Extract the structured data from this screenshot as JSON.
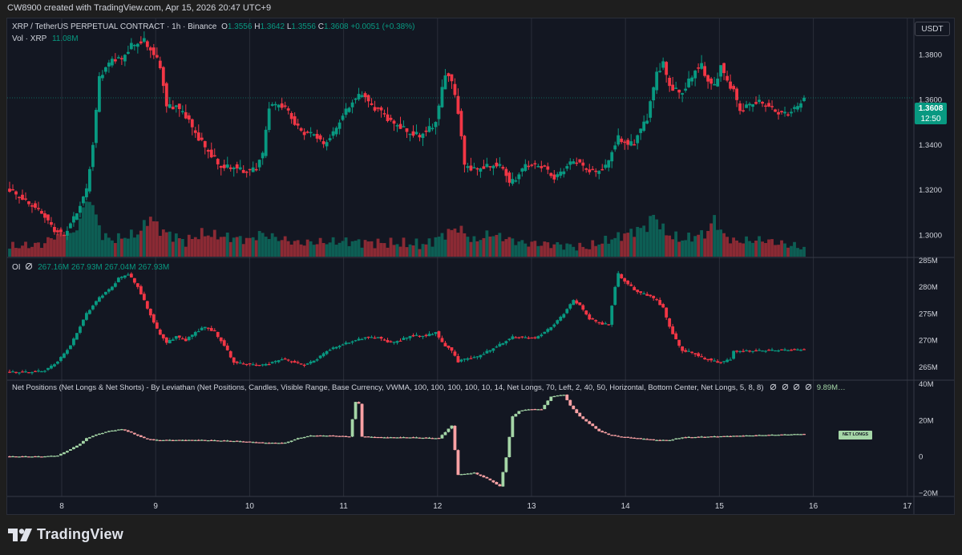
{
  "header": {
    "created": "CW8900 created with TradingView.com, Apr 15, 2026 20:47 UTC+9"
  },
  "main_legend": {
    "symbol": "XRP / TetherUS PERPETUAL CONTRACT · 1h · Binance",
    "o_label": "O",
    "o": "1.3556",
    "h_label": "H",
    "h": "1.3642",
    "l_label": "L",
    "l": "1.3556",
    "c_label": "C",
    "c": "1.3608",
    "change": "+0.0051 (+0.38%)",
    "vol_label": "Vol · XRP",
    "vol": "11.08M"
  },
  "oi_legend": {
    "label": "OI",
    "icon": "hidden-eye-icon",
    "values": [
      "267.16M",
      "267.93M",
      "267.04M",
      "267.93M"
    ]
  },
  "net_legend": {
    "text": "Net Positions (Net Longs & Net Shorts) - By Leviathan (Net Positions, Candles, Visible Range, Base Currency, VWMA, 100, 100, 100, 100, 10, 14, Net Longs, 70, Left, 2, 40, 50, Horizontal, Bottom Center, Net Longs, 5, 8, 8)",
    "value": "9.89M…"
  },
  "currency_button": "USDT",
  "last_price": {
    "value": "1.3608",
    "countdown": "12:50"
  },
  "net_longs_tag": "NET LONGS",
  "colors": {
    "up": "#089981",
    "down": "#f23645",
    "net_up": "#a5d6a7",
    "net_down": "#faa1a4",
    "bg": "#131722",
    "grid": "#2a2e39"
  },
  "footer": {
    "logo_text": "TradingView"
  },
  "chart_data": [
    {
      "type": "candlestick",
      "title": "XRP / TetherUS PERPETUAL CONTRACT · 1h · Binance",
      "x_tick_labels": [
        "8",
        "9",
        "10",
        "11",
        "12",
        "13",
        "14",
        "15",
        "16",
        "17"
      ],
      "y_ticks": [
        "1.3800",
        "1.3600",
        "1.3400",
        "1.3200",
        "1.3000"
      ],
      "ylim": [
        1.29,
        1.396
      ],
      "anchors": [
        [
          0,
          1.32
        ],
        [
          5,
          1.315
        ],
        [
          10,
          1.31
        ],
        [
          14,
          1.302
        ],
        [
          17,
          1.3
        ],
        [
          21,
          1.31
        ],
        [
          24,
          1.32
        ],
        [
          26,
          1.34
        ],
        [
          28,
          1.37
        ],
        [
          32,
          1.378
        ],
        [
          35,
          1.378
        ],
        [
          38,
          1.384
        ],
        [
          42,
          1.386
        ],
        [
          45,
          1.38
        ],
        [
          47,
          1.375
        ],
        [
          49,
          1.357
        ],
        [
          52,
          1.357
        ],
        [
          55,
          1.353
        ],
        [
          58,
          1.345
        ],
        [
          62,
          1.337
        ],
        [
          66,
          1.33
        ],
        [
          70,
          1.33
        ],
        [
          74,
          1.328
        ],
        [
          77,
          1.33
        ],
        [
          79,
          1.336
        ],
        [
          81,
          1.357
        ],
        [
          84,
          1.358
        ],
        [
          87,
          1.355
        ],
        [
          89,
          1.349
        ],
        [
          92,
          1.345
        ],
        [
          95,
          1.345
        ],
        [
          98,
          1.34
        ],
        [
          101,
          1.345
        ],
        [
          104,
          1.353
        ],
        [
          107,
          1.359
        ],
        [
          110,
          1.363
        ],
        [
          113,
          1.357
        ],
        [
          116,
          1.355
        ],
        [
          119,
          1.35
        ],
        [
          122,
          1.348
        ],
        [
          125,
          1.345
        ],
        [
          128,
          1.344
        ],
        [
          131,
          1.347
        ],
        [
          133,
          1.35
        ],
        [
          136,
          1.372
        ],
        [
          138,
          1.368
        ],
        [
          140,
          1.355
        ],
        [
          142,
          1.331
        ],
        [
          145,
          1.329
        ],
        [
          148,
          1.33
        ],
        [
          151,
          1.331
        ],
        [
          154,
          1.33
        ],
        [
          156,
          1.323
        ],
        [
          158,
          1.325
        ],
        [
          161,
          1.331
        ],
        [
          164,
          1.331
        ],
        [
          167,
          1.33
        ],
        [
          170,
          1.325
        ],
        [
          173,
          1.329
        ],
        [
          175,
          1.332
        ],
        [
          177,
          1.333
        ],
        [
          180,
          1.329
        ],
        [
          183,
          1.328
        ],
        [
          186,
          1.33
        ],
        [
          188,
          1.337
        ],
        [
          190,
          1.343
        ],
        [
          193,
          1.34
        ],
        [
          195,
          1.341
        ],
        [
          197,
          1.347
        ],
        [
          199,
          1.352
        ],
        [
          202,
          1.372
        ],
        [
          204,
          1.376
        ],
        [
          206,
          1.366
        ],
        [
          208,
          1.364
        ],
        [
          210,
          1.363
        ],
        [
          212,
          1.368
        ],
        [
          214,
          1.373
        ],
        [
          216,
          1.375
        ],
        [
          218,
          1.368
        ],
        [
          220,
          1.366
        ],
        [
          222,
          1.375
        ],
        [
          224,
          1.368
        ],
        [
          226,
          1.364
        ],
        [
          228,
          1.355
        ],
        [
          231,
          1.358
        ],
        [
          234,
          1.359
        ],
        [
          237,
          1.357
        ],
        [
          240,
          1.354
        ],
        [
          243,
          1.354
        ],
        [
          246,
          1.357
        ],
        [
          248,
          1.361
        ]
      ]
    },
    {
      "type": "bar",
      "title": "Vol · XRP",
      "last_value": "11.08M",
      "anchors": [
        [
          0,
          0.13
        ],
        [
          10,
          0.16
        ],
        [
          16,
          0.32
        ],
        [
          20,
          0.28
        ],
        [
          23,
          0.62
        ],
        [
          25,
          0.78
        ],
        [
          27,
          0.53
        ],
        [
          29,
          0.28
        ],
        [
          32,
          0.22
        ],
        [
          40,
          0.3
        ],
        [
          44,
          0.52
        ],
        [
          47,
          0.35
        ],
        [
          55,
          0.2
        ],
        [
          60,
          0.3
        ],
        [
          75,
          0.22
        ],
        [
          78,
          0.3
        ],
        [
          80,
          0.28
        ],
        [
          90,
          0.18
        ],
        [
          105,
          0.2
        ],
        [
          115,
          0.18
        ],
        [
          130,
          0.16
        ],
        [
          136,
          0.3
        ],
        [
          140,
          0.38
        ],
        [
          145,
          0.2
        ],
        [
          150,
          0.3
        ],
        [
          160,
          0.18
        ],
        [
          170,
          0.16
        ],
        [
          180,
          0.12
        ],
        [
          190,
          0.26
        ],
        [
          199,
          0.4
        ],
        [
          201,
          0.55
        ],
        [
          203,
          0.42
        ],
        [
          205,
          0.3
        ],
        [
          210,
          0.22
        ],
        [
          218,
          0.32
        ],
        [
          220,
          0.52
        ],
        [
          222,
          0.32
        ],
        [
          226,
          0.2
        ],
        [
          235,
          0.22
        ],
        [
          245,
          0.14
        ],
        [
          248,
          0.12
        ]
      ]
    },
    {
      "type": "candlestick",
      "title": "OI",
      "legend_values": [
        "267.16M",
        "267.93M",
        "267.04M",
        "267.93M"
      ],
      "y_ticks": [
        "285M",
        "280M",
        "275M",
        "270M",
        "265M"
      ],
      "ylim": [
        262.5,
        285.5
      ],
      "anchors": [
        [
          0,
          264.0
        ],
        [
          6,
          264.0
        ],
        [
          11,
          264.3
        ],
        [
          15,
          266.0
        ],
        [
          19,
          269.0
        ],
        [
          24,
          275.0
        ],
        [
          28,
          278.0
        ],
        [
          32,
          280.0
        ],
        [
          34,
          281.6
        ],
        [
          37,
          282.4
        ],
        [
          40,
          280.0
        ],
        [
          43,
          276.0
        ],
        [
          46,
          272.0
        ],
        [
          49,
          269.5
        ],
        [
          52,
          270.7
        ],
        [
          55,
          270.0
        ],
        [
          58,
          271.5
        ],
        [
          61,
          272.5
        ],
        [
          64,
          271.5
        ],
        [
          67,
          269.0
        ],
        [
          70,
          265.8
        ],
        [
          74,
          265.5
        ],
        [
          78,
          265.3
        ],
        [
          81,
          265.6
        ],
        [
          85,
          266.5
        ],
        [
          88,
          266.0
        ],
        [
          92,
          265.3
        ],
        [
          96,
          266.5
        ],
        [
          99,
          268.0
        ],
        [
          103,
          269.0
        ],
        [
          107,
          269.8
        ],
        [
          111,
          270.5
        ],
        [
          115,
          270.5
        ],
        [
          119,
          269.5
        ],
        [
          122,
          270.0
        ],
        [
          125,
          270.8
        ],
        [
          130,
          270.8
        ],
        [
          133,
          271.5
        ],
        [
          135,
          269.5
        ],
        [
          138,
          268.0
        ],
        [
          140,
          266.0
        ],
        [
          142,
          266.5
        ],
        [
          145,
          266.7
        ],
        [
          148,
          267.5
        ],
        [
          151,
          268.5
        ],
        [
          154,
          269.5
        ],
        [
          157,
          270.6
        ],
        [
          161,
          270.5
        ],
        [
          164,
          270.4
        ],
        [
          167,
          271.5
        ],
        [
          170,
          273.0
        ],
        [
          173,
          275.0
        ],
        [
          176,
          277.5
        ],
        [
          178,
          276.5
        ],
        [
          181,
          274.0
        ],
        [
          185,
          273.0
        ],
        [
          187,
          273.0
        ],
        [
          189,
          280.0
        ],
        [
          190,
          282.4
        ],
        [
          192,
          281.0
        ],
        [
          196,
          279.0
        ],
        [
          199,
          278.5
        ],
        [
          202,
          277.5
        ],
        [
          204,
          276.0
        ],
        [
          206,
          272.5
        ],
        [
          208,
          270.0
        ],
        [
          210,
          268.0
        ],
        [
          213,
          267.7
        ],
        [
          216,
          266.7
        ],
        [
          219,
          266.2
        ],
        [
          222,
          265.8
        ],
        [
          225,
          266.5
        ],
        [
          226,
          267.9
        ]
      ]
    },
    {
      "type": "candlestick",
      "title": "Net Positions (Net Longs & Net Shorts)",
      "y_ticks": [
        "40M",
        "20M",
        "0",
        "−20M"
      ],
      "ylim": [
        -22,
        42
      ],
      "anchors": [
        [
          0,
          0
        ],
        [
          10,
          0
        ],
        [
          15,
          0.5
        ],
        [
          19,
          4
        ],
        [
          22,
          7
        ],
        [
          24,
          10
        ],
        [
          27,
          12
        ],
        [
          31,
          14
        ],
        [
          35,
          15
        ],
        [
          38,
          13
        ],
        [
          42,
          10
        ],
        [
          45,
          9
        ],
        [
          50,
          9
        ],
        [
          60,
          9
        ],
        [
          70,
          8.5
        ],
        [
          80,
          7.5
        ],
        [
          86,
          7.5
        ],
        [
          90,
          10
        ],
        [
          94,
          11.5
        ],
        [
          100,
          11.5
        ],
        [
          106,
          11
        ],
        [
          108,
          30
        ],
        [
          109,
          29
        ],
        [
          110,
          11
        ],
        [
          116,
          10.5
        ],
        [
          125,
          10.5
        ],
        [
          134,
          10
        ],
        [
          138,
          17
        ],
        [
          140,
          -10
        ],
        [
          145,
          -9
        ],
        [
          150,
          -13
        ],
        [
          153,
          -16.5
        ],
        [
          155,
          -0.5
        ],
        [
          157,
          22
        ],
        [
          159,
          25
        ],
        [
          162,
          26
        ],
        [
          166,
          26
        ],
        [
          169,
          33
        ],
        [
          173,
          34
        ],
        [
          175,
          28
        ],
        [
          178,
          22
        ],
        [
          181,
          18
        ],
        [
          184,
          14
        ],
        [
          187,
          12
        ],
        [
          190,
          11
        ],
        [
          196,
          10
        ],
        [
          202,
          9
        ],
        [
          206,
          9
        ],
        [
          210,
          10.5
        ]
      ]
    }
  ]
}
